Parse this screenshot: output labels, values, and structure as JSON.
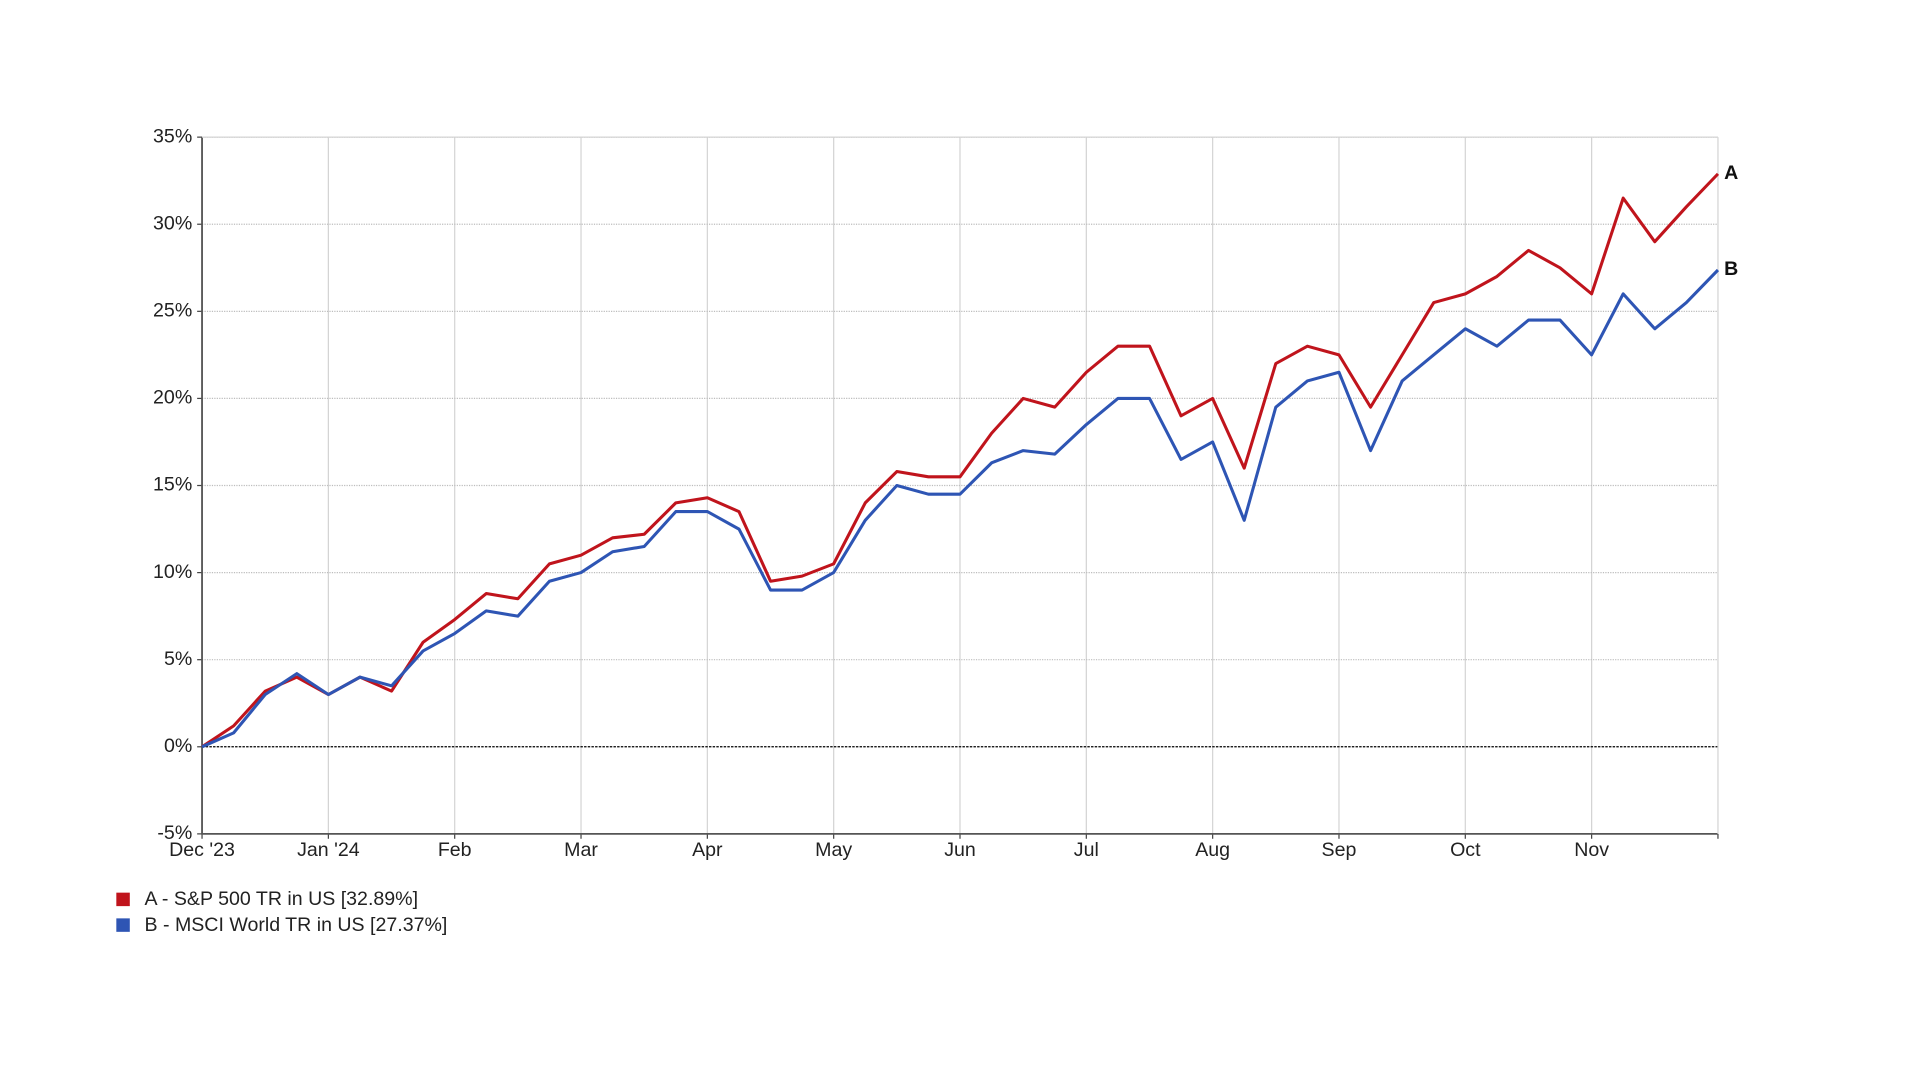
{
  "chart_data": {
    "type": "line",
    "categories": [
      "Dec '23",
      null,
      null,
      null,
      "Jan '24",
      null,
      null,
      null,
      "Feb",
      null,
      null,
      null,
      "Mar",
      null,
      null,
      null,
      "Apr",
      null,
      null,
      null,
      "May",
      null,
      null,
      null,
      "Jun",
      null,
      null,
      null,
      "Jul",
      null,
      null,
      null,
      "Aug",
      null,
      null,
      null,
      "Sep",
      null,
      null,
      null,
      "Oct",
      null,
      null,
      null,
      "Nov",
      null,
      null,
      null,
      null
    ],
    "series": [
      {
        "name": "A - S&P 500 TR in US [32.89%]",
        "end_label": "A",
        "color": "#c0141c",
        "values": [
          0,
          1.2,
          3.2,
          4.0,
          3.0,
          4.0,
          3.2,
          6.0,
          7.3,
          8.8,
          8.5,
          10.5,
          11.0,
          12.0,
          12.2,
          14.0,
          14.3,
          13.5,
          9.5,
          9.8,
          10.5,
          14.0,
          15.8,
          15.5,
          15.5,
          18.0,
          20.0,
          19.5,
          21.5,
          23.0,
          23.0,
          19.0,
          20.0,
          16.0,
          22.0,
          23.0,
          22.5,
          19.5,
          22.5,
          25.5,
          26.0,
          27.0,
          28.5,
          27.5,
          26.0,
          31.5,
          29.0,
          31.0,
          32.89
        ]
      },
      {
        "name": "B - MSCI World TR in US [27.37%]",
        "end_label": "B",
        "color": "#2e55b4",
        "values": [
          0,
          0.8,
          3.0,
          4.2,
          3.0,
          4.0,
          3.5,
          5.5,
          6.5,
          7.8,
          7.5,
          9.5,
          10.0,
          11.2,
          11.5,
          13.5,
          13.5,
          12.5,
          9.0,
          9.0,
          10.0,
          13.0,
          15.0,
          14.5,
          14.5,
          16.3,
          17.0,
          16.8,
          18.5,
          20.0,
          20.0,
          16.5,
          17.5,
          13.0,
          19.5,
          21.0,
          21.5,
          17.0,
          21.0,
          22.5,
          24.0,
          23.0,
          24.5,
          24.5,
          22.5,
          26.0,
          24.0,
          25.5,
          27.37
        ]
      }
    ],
    "ylim": [
      -5,
      35
    ],
    "yticks": [
      {
        "value": -5,
        "label": "-5%"
      },
      {
        "value": 0,
        "label": "0%"
      },
      {
        "value": 5,
        "label": "5%"
      },
      {
        "value": 10,
        "label": "10%"
      },
      {
        "value": 15,
        "label": "15%"
      },
      {
        "value": 20,
        "label": "20%"
      },
      {
        "value": 25,
        "label": "25%"
      },
      {
        "value": 30,
        "label": "30%"
      },
      {
        "value": 35,
        "label": "35%"
      }
    ],
    "grid": true,
    "legend": "bottom-left"
  }
}
